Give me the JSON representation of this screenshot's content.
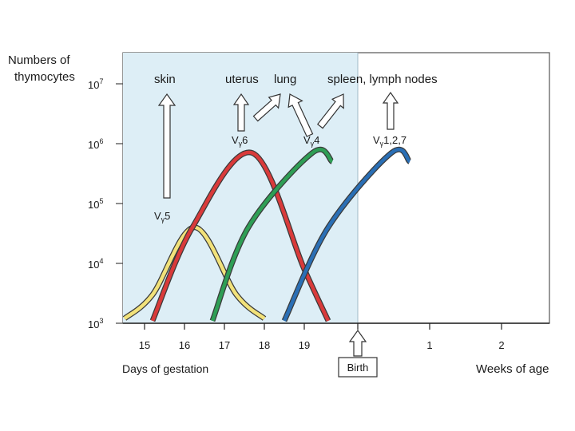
{
  "chart_data": {
    "type": "line",
    "ylabel_lines": [
      "Numbers of",
      "thymocytes"
    ],
    "xlabel_left": "Days of gestation",
    "xlabel_right": "Weeks of age",
    "y_scale": "log",
    "ylim": [
      1000,
      10000000
    ],
    "y_ticks": [
      {
        "base": "10",
        "exp": "3"
      },
      {
        "base": "10",
        "exp": "4"
      },
      {
        "base": "10",
        "exp": "5"
      },
      {
        "base": "10",
        "exp": "6"
      },
      {
        "base": "10",
        "exp": "7"
      }
    ],
    "x_ticks_days": [
      "15",
      "16",
      "17",
      "18",
      "19"
    ],
    "x_ticks_weeks": [
      "1",
      "2"
    ],
    "birth_label": "Birth",
    "shaded_region": "days of gestation (before birth)",
    "colors": {
      "shade": "#ddeef6",
      "yellow": "#f2e27a",
      "red": "#d93a3a",
      "green": "#2e9e55",
      "blue": "#2a6fb5"
    },
    "series": [
      {
        "name": "Vγ5",
        "color": "yellow",
        "x": [
          14.5,
          15.2,
          16.25,
          17.3,
          18.0
        ],
        "y": [
          1200,
          3000,
          40000,
          3000,
          1200
        ]
      },
      {
        "name": "Vγ6",
        "color": "red",
        "x": [
          15.2,
          16.2,
          17.7,
          19.0,
          19.6
        ],
        "y": [
          1100,
          40000,
          700000,
          8000,
          1100
        ]
      },
      {
        "name": "Vγ4",
        "color": "green",
        "x": [
          16.7,
          17.6,
          19.2,
          19.7
        ],
        "y": [
          1100,
          40000,
          700000,
          500000
        ]
      },
      {
        "name": "Vγ1,2,7",
        "color": "blue",
        "x": [
          18.5,
          19.6,
          "1 week",
          "1 week +"
        ],
        "y": [
          1100,
          40000,
          700000,
          500000
        ]
      }
    ],
    "series_labels": [
      {
        "prefix": "V",
        "greek": "γ",
        "suffix": "5"
      },
      {
        "prefix": "V",
        "greek": "γ",
        "suffix": "6"
      },
      {
        "prefix": "V",
        "greek": "γ",
        "suffix": "4"
      },
      {
        "prefix": "V",
        "greek": "γ",
        "suffix": "1,2,7"
      }
    ],
    "destinations": [
      "skin",
      "uterus",
      "lung",
      "spleen, lymph nodes"
    ]
  }
}
